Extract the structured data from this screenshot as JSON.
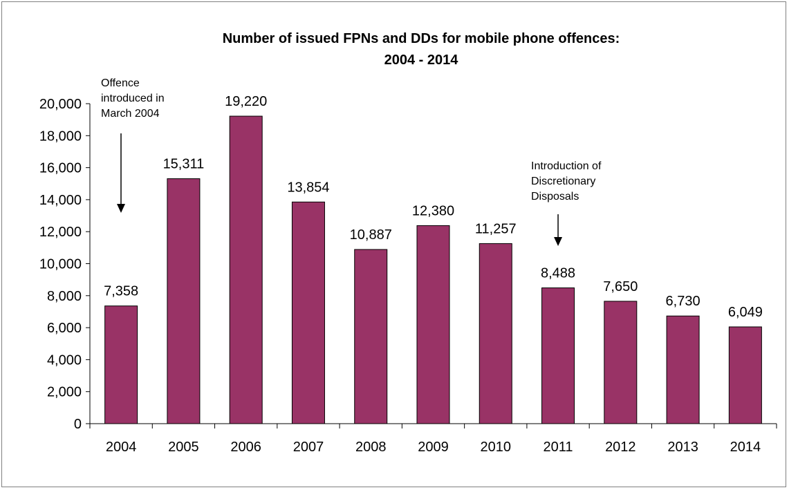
{
  "chart_data": {
    "type": "bar",
    "title": [
      "Number of issued FPNs and DDs for mobile phone offences:",
      "2004 - 2014"
    ],
    "xlabel": "",
    "ylabel": "",
    "categories": [
      "2004",
      "2005",
      "2006",
      "2007",
      "2008",
      "2009",
      "2010",
      "2011",
      "2012",
      "2013",
      "2014"
    ],
    "values": [
      7358,
      15311,
      19220,
      13854,
      10887,
      12380,
      11257,
      8488,
      7650,
      6730,
      6049
    ],
    "value_labels": [
      "7,358",
      "15,311",
      "19,220",
      "13,854",
      "10,887",
      "12,380",
      "11,257",
      "8,488",
      "7,650",
      "6,730",
      "6,049"
    ],
    "ylim": [
      0,
      20000
    ],
    "yticks": [
      0,
      2000,
      4000,
      6000,
      8000,
      10000,
      12000,
      14000,
      16000,
      18000,
      20000
    ],
    "ytick_labels": [
      "0",
      "2,000",
      "4,000",
      "6,000",
      "8,000",
      "10,000",
      "12,000",
      "14,000",
      "16,000",
      "18,000",
      "20,000"
    ],
    "bar_color": "#993366",
    "grid": false,
    "annotations": [
      {
        "category": "2004",
        "lines": [
          "Offence",
          "introduced in",
          "March 2004"
        ]
      },
      {
        "category": "2011",
        "lines": [
          "Introduction of",
          "Discretionary",
          "Disposals"
        ]
      }
    ]
  }
}
